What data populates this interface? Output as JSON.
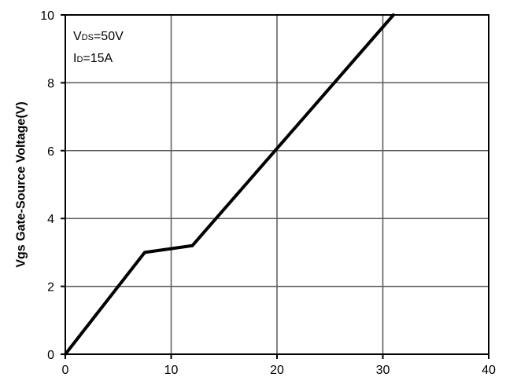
{
  "chart_data": {
    "type": "line",
    "title": "",
    "xlabel": "",
    "ylabel": "Vgs Gate-Source Voltage(V)",
    "xlim": [
      0,
      40
    ],
    "ylim": [
      0,
      10
    ],
    "xticks": [
      "0",
      "10",
      "20",
      "30",
      "40"
    ],
    "yticks": [
      "0",
      "2",
      "4",
      "6",
      "8",
      "10"
    ],
    "grid": true,
    "series": [
      {
        "x": [
          0,
          7.5,
          12,
          31
        ],
        "y": [
          0,
          3.0,
          3.2,
          10
        ]
      }
    ],
    "annotations": [
      {
        "main": "V",
        "sub": "DS",
        "rest": "=50V"
      },
      {
        "main": "I",
        "sub": "D",
        "rest": "=15A"
      }
    ],
    "colors": {
      "line": "#000000",
      "grid": "#595959",
      "frame": "#000000"
    }
  }
}
